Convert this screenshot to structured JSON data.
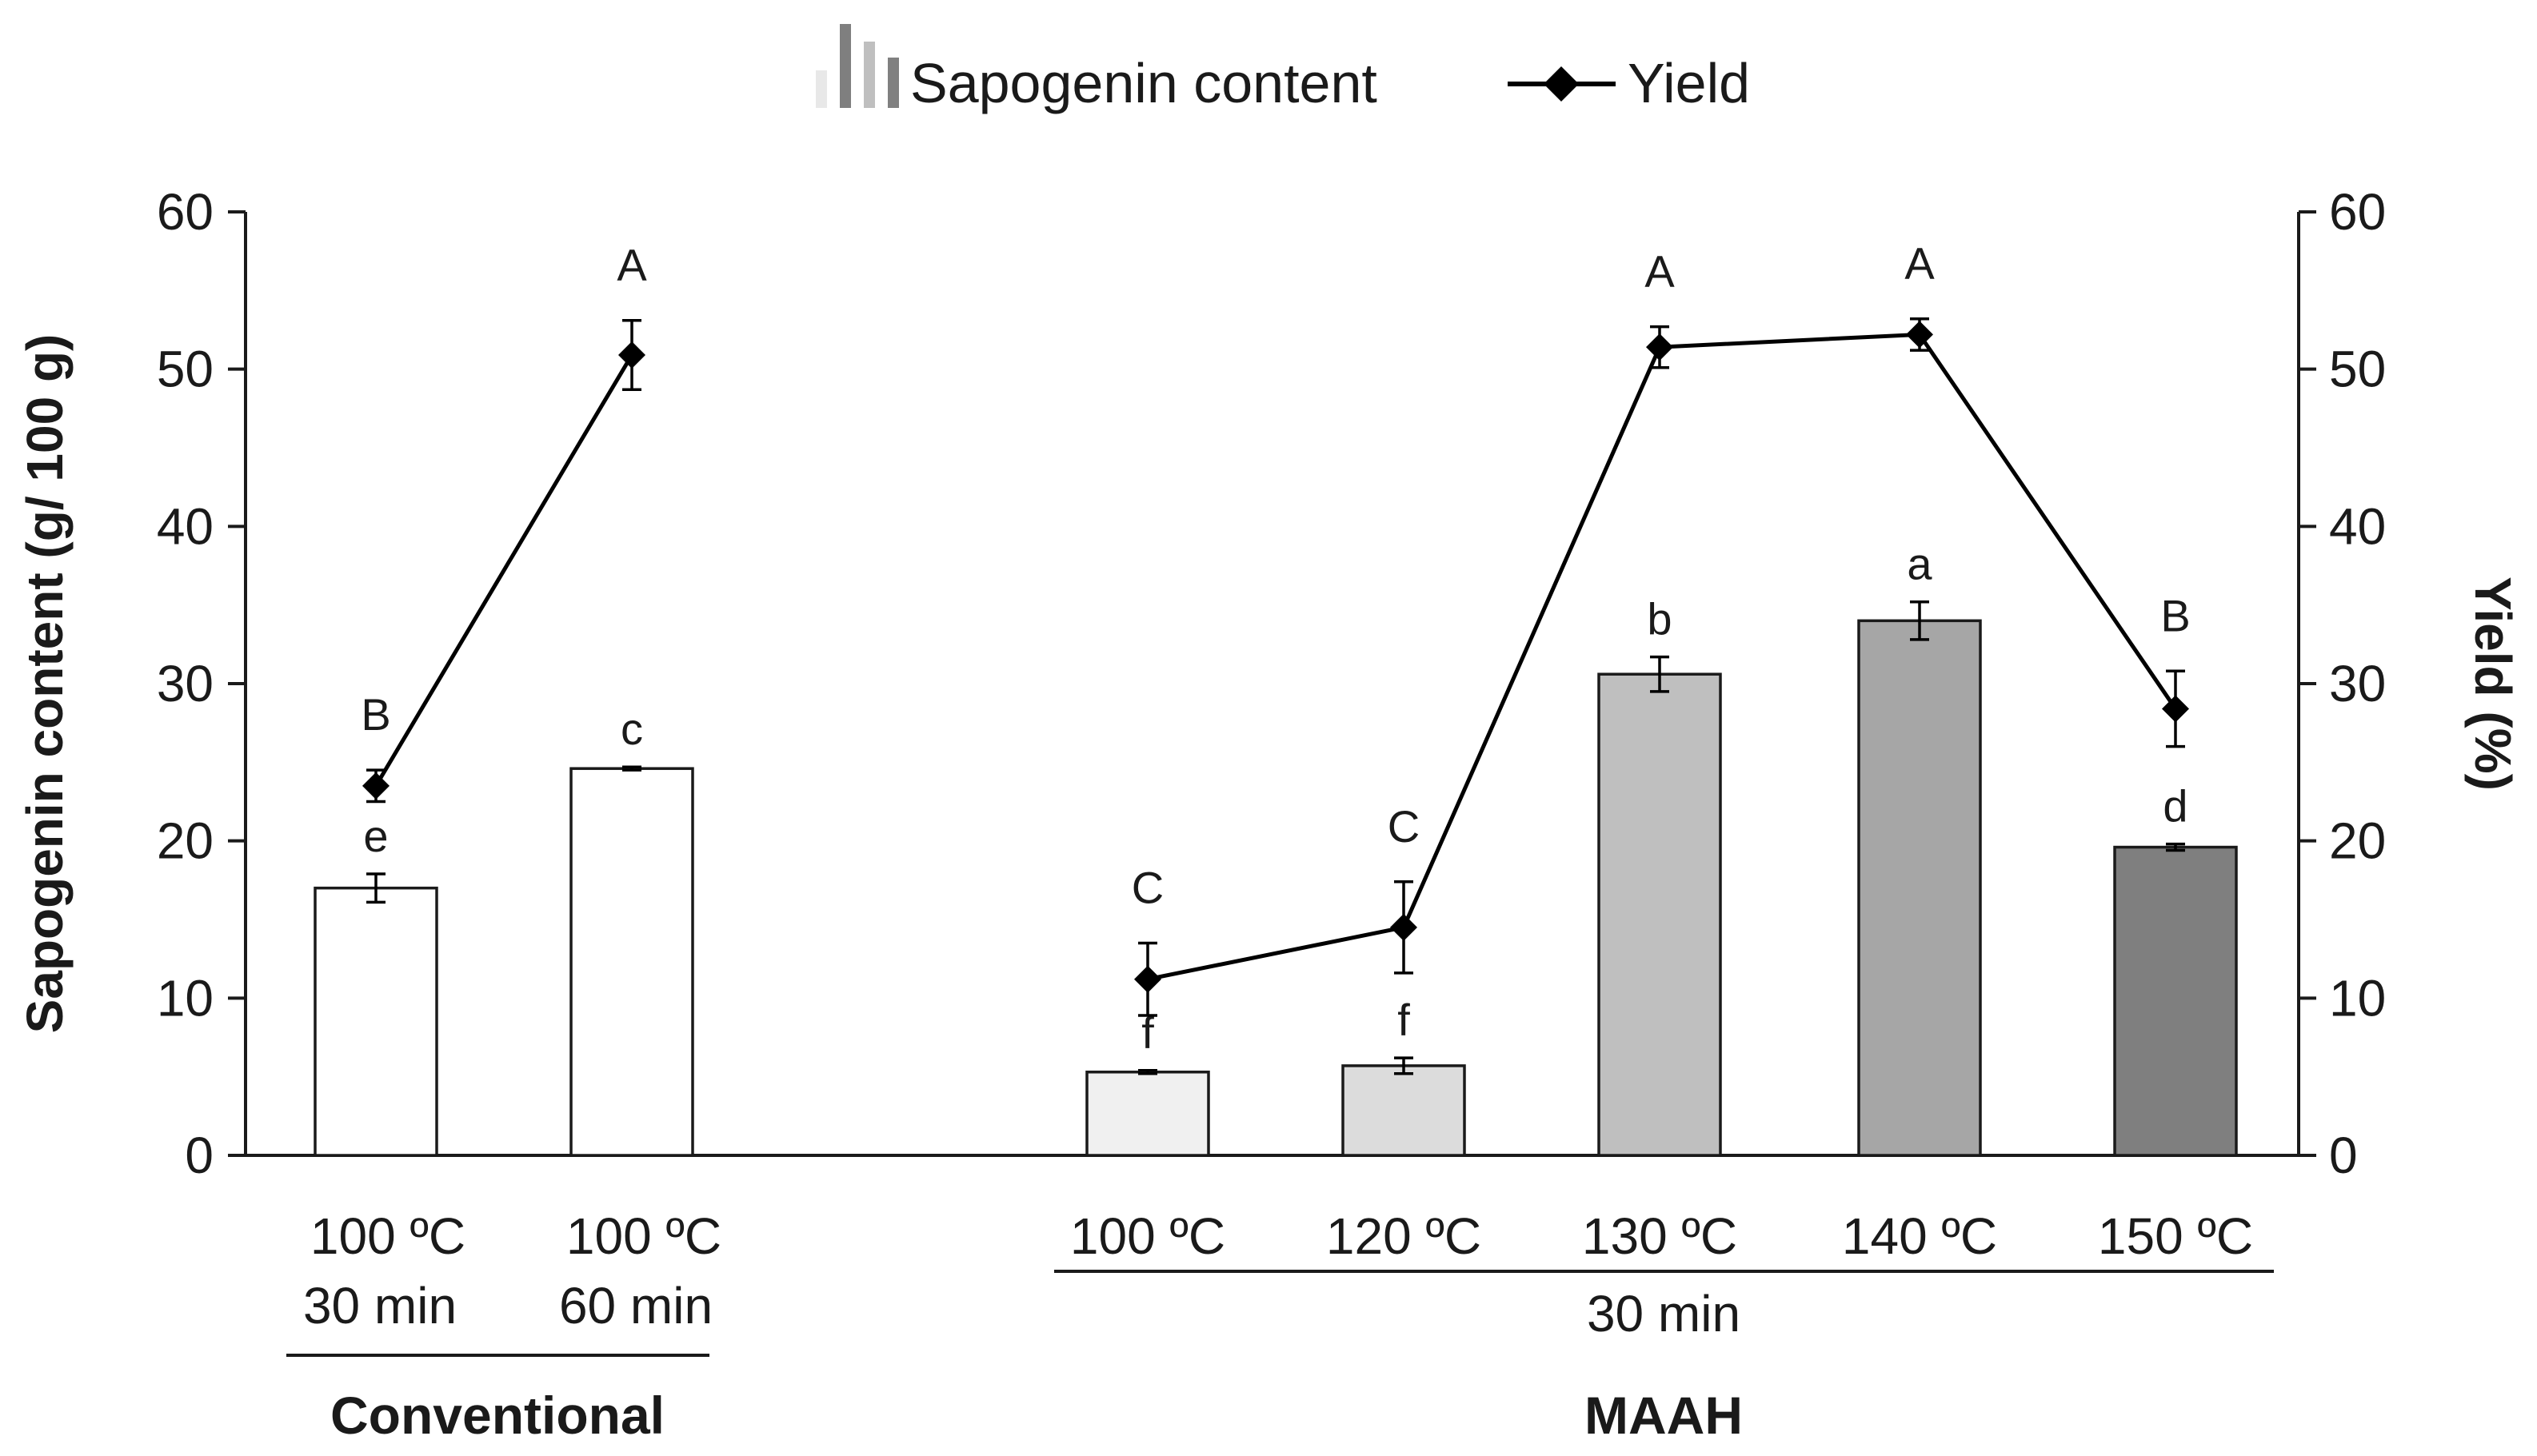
{
  "chart_data": {
    "type": "bar+line",
    "left_axis": {
      "title": "Sapogenin content (g/ 100 g)",
      "ylim": [
        0,
        60
      ],
      "ticks": [
        0,
        10,
        20,
        30,
        40,
        50,
        60
      ]
    },
    "right_axis": {
      "title": "Yield (%)",
      "ylim": [
        0,
        60
      ],
      "ticks": [
        0,
        10,
        20,
        30,
        40,
        50,
        60
      ]
    },
    "legend": {
      "position": "top-center",
      "entries": [
        {
          "name": "Sapogenin content",
          "kind": "bar"
        },
        {
          "name": "Yield",
          "kind": "line"
        }
      ]
    },
    "groups": [
      {
        "name": "Conventional",
        "sublabel": "",
        "categories": [
          0,
          1
        ]
      },
      {
        "name": "MAAH",
        "sublabel": "30 min",
        "categories": [
          2,
          3,
          4,
          5,
          6
        ]
      }
    ],
    "categories": [
      {
        "label_line1": "100 ºC",
        "label_line2": "30 min",
        "group": "Conventional",
        "bar_color": "#ffffff"
      },
      {
        "label_line1": "100 ºC",
        "label_line2": "60 min",
        "group": "Conventional",
        "bar_color": "#ffffff"
      },
      {
        "label_line1": "100 ºC",
        "label_line2": "",
        "group": "MAAH",
        "bar_color": "#f0f0f0"
      },
      {
        "label_line1": "120 ºC",
        "label_line2": "",
        "group": "MAAH",
        "bar_color": "#dcdcdc"
      },
      {
        "label_line1": "130 ºC",
        "label_line2": "",
        "group": "MAAH",
        "bar_color": "#bfbfbf"
      },
      {
        "label_line1": "140 ºC",
        "label_line2": "",
        "group": "MAAH",
        "bar_color": "#a6a6a6"
      },
      {
        "label_line1": "150 ºC",
        "label_line2": "",
        "group": "MAAH",
        "bar_color": "#7f7f7f"
      }
    ],
    "series": [
      {
        "name": "Sapogenin content",
        "type": "bar",
        "values": [
          17.0,
          24.6,
          5.3,
          5.7,
          30.6,
          34.0,
          19.6
        ],
        "errors": [
          0.9,
          0.1,
          0.1,
          0.5,
          1.1,
          1.2,
          0.2
        ],
        "letters": [
          "e",
          "c",
          "f",
          "f",
          "b",
          "a",
          "d"
        ]
      },
      {
        "name": "Yield",
        "type": "line",
        "values": [
          23.5,
          50.9,
          11.2,
          14.5,
          51.4,
          52.2,
          28.4
        ],
        "errors": [
          1.0,
          2.2,
          2.3,
          2.9,
          1.3,
          1.0,
          2.4
        ],
        "letters": [
          "B",
          "A",
          "C",
          "C",
          "A",
          "A",
          "B"
        ]
      }
    ],
    "colors": {
      "axis": "#1a1a1a",
      "bar_edge": "#1a1a1a",
      "line": "#000000"
    }
  }
}
